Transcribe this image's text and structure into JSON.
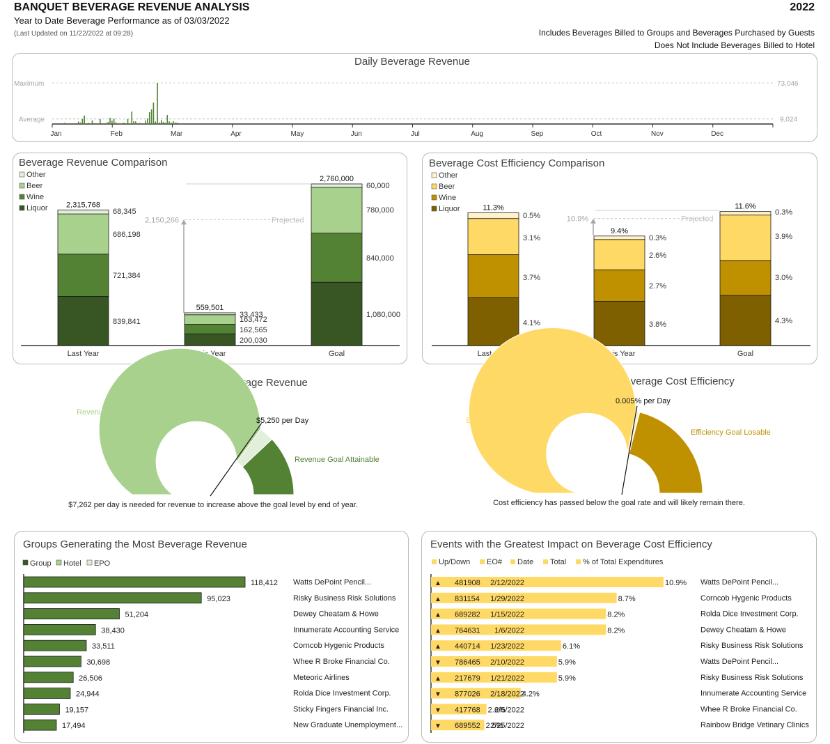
{
  "header": {
    "title": "BANQUET BEVERAGE REVENUE ANALYSIS",
    "year": "2022",
    "subtitle": "Year to Date Beverage Performance as of 03/03/2022",
    "last_updated": "(Last Updated on 11/22/2022 at 09:28)",
    "note_line1": "Includes Beverages Billed to Groups and Beverages Purchased by Guests",
    "note_line2": "Does Not Include Beverages Billed to Hotel"
  },
  "colors": {
    "liquor": "#375623",
    "wine": "#548235",
    "beer": "#a9d18e",
    "other": "#e2efda",
    "cost_liquor": "#7f6000",
    "cost_wine": "#bf9000",
    "cost_beer": "#ffd966",
    "cost_other": "#fff2cc",
    "group_bar": "#548235",
    "event_bar": "#ffd966"
  },
  "chart_data": [
    {
      "id": "daily",
      "type": "bar",
      "title": "Daily Beverage Revenue",
      "max_label": "Maximum",
      "avg_label": "Average",
      "max_value_label": "73,046",
      "avg_value_label": "9,024",
      "max_value": 73046,
      "avg_value": 9024,
      "months": [
        "Jan",
        "Feb",
        "Mar",
        "Apr",
        "May",
        "Jun",
        "Jul",
        "Aug",
        "Sep",
        "Oct",
        "Nov",
        "Dec"
      ],
      "x_unit": "day of year",
      "points": [
        {
          "x": 6,
          "y": 2100
        },
        {
          "x": 13,
          "y": 4300
        },
        {
          "x": 14,
          "y": 2600
        },
        {
          "x": 15,
          "y": 9000
        },
        {
          "x": 16,
          "y": 15000
        },
        {
          "x": 18,
          "y": 2000
        },
        {
          "x": 20,
          "y": 6500
        },
        {
          "x": 24,
          "y": 8800
        },
        {
          "x": 27,
          "y": 1800
        },
        {
          "x": 28,
          "y": 3600
        },
        {
          "x": 29,
          "y": 11000
        },
        {
          "x": 30,
          "y": 6000
        },
        {
          "x": 31,
          "y": 9400
        },
        {
          "x": 32,
          "y": 3000
        },
        {
          "x": 36,
          "y": 2400
        },
        {
          "x": 38,
          "y": 9000
        },
        {
          "x": 40,
          "y": 22000
        },
        {
          "x": 41,
          "y": 5000
        },
        {
          "x": 42,
          "y": 4600
        },
        {
          "x": 44,
          "y": 2000
        },
        {
          "x": 47,
          "y": 6100
        },
        {
          "x": 48,
          "y": 9900
        },
        {
          "x": 49,
          "y": 21000
        },
        {
          "x": 50,
          "y": 26000
        },
        {
          "x": 51,
          "y": 38000
        },
        {
          "x": 52,
          "y": 4400
        },
        {
          "x": 53,
          "y": 73046
        },
        {
          "x": 54,
          "y": 2700
        },
        {
          "x": 55,
          "y": 7000
        },
        {
          "x": 56,
          "y": 3500
        },
        {
          "x": 57,
          "y": 2300
        },
        {
          "x": 58,
          "y": 16000
        },
        {
          "x": 59,
          "y": 4600
        },
        {
          "x": 60,
          "y": 2200
        },
        {
          "x": 61,
          "y": 5000
        },
        {
          "x": 62,
          "y": 2600
        },
        {
          "x": 63,
          "y": 2500
        }
      ]
    },
    {
      "id": "revenue_comparison",
      "type": "bar",
      "title": "Beverage Revenue Comparison",
      "categories": [
        "Last Year",
        "This Year",
        "Goal"
      ],
      "series": [
        {
          "name": "Liquor",
          "values": [
            839841,
            200030,
            1080000
          ]
        },
        {
          "name": "Wine",
          "values": [
            721384,
            162565,
            840000
          ]
        },
        {
          "name": "Beer",
          "values": [
            686198,
            163472,
            780000
          ]
        },
        {
          "name": "Other",
          "values": [
            68345,
            33433,
            60000
          ]
        }
      ],
      "value_labels": [
        [
          "839,841",
          "721,384",
          "686,198",
          "68,345"
        ],
        [
          "200,030",
          "162,565",
          "163,472",
          "33,433"
        ],
        [
          "1,080,000",
          "840,000",
          "780,000",
          "60,000"
        ]
      ],
      "totals": [
        2315768,
        559501,
        2760000
      ],
      "total_labels": [
        "2,315,768",
        "559,501",
        "2,760,000"
      ],
      "legend": [
        "Other",
        "Beer",
        "Wine",
        "Liquor"
      ],
      "projected_value": 2150266,
      "projected_value_label": "2,150,266",
      "projected_label": "Projected",
      "ylim": [
        0,
        2760000
      ]
    },
    {
      "id": "cost_comparison",
      "type": "bar",
      "title": "Beverage Cost Efficiency Comparison",
      "categories": [
        "Last Year",
        "This Year",
        "Goal"
      ],
      "series": [
        {
          "name": "Liquor",
          "values": [
            4.1,
            3.8,
            4.3
          ]
        },
        {
          "name": "Wine",
          "values": [
            3.7,
            2.7,
            3.0
          ]
        },
        {
          "name": "Beer",
          "values": [
            3.1,
            2.6,
            3.9
          ]
        },
        {
          "name": "Other",
          "values": [
            0.5,
            0.3,
            0.3
          ]
        }
      ],
      "value_labels": [
        [
          "4.1%",
          "3.7%",
          "3.1%",
          "0.5%"
        ],
        [
          "3.8%",
          "2.7%",
          "2.6%",
          "0.3%"
        ],
        [
          "4.3%",
          "3.0%",
          "3.9%",
          "0.3%"
        ]
      ],
      "totals": [
        11.3,
        9.4,
        11.6
      ],
      "total_labels": [
        "11.3%",
        "9.4%",
        "11.6%"
      ],
      "legend": [
        "Other",
        "Beer",
        "Wine",
        "Liquor"
      ],
      "projected_value": 10.9,
      "projected_value_label": "10.9%",
      "projected_label": "Projected",
      "ylim": [
        0,
        11.6
      ]
    },
    {
      "id": "revenue_gauge",
      "type": "pie",
      "title": "Current Daily Gain in Beverage Revenue",
      "not_attainable_label": "Revenue Goal Not Attainable",
      "attainable_label": "Revenue Goal Attainable",
      "segments": [
        {
          "name": "Revenue Goal Not Attainable",
          "fraction": 0.7
        },
        {
          "name": "band",
          "fraction": 0.06
        },
        {
          "name": "Revenue Goal Attainable",
          "fraction": 0.24
        }
      ],
      "needle_fraction": 0.69,
      "needle_label": "$5,250 per Day",
      "caption": "$7,262 per day is needed for revenue to increase above the goal level by end of year."
    },
    {
      "id": "cost_gauge",
      "type": "pie",
      "title": "Current Daily Change in Beverage Cost Efficiency",
      "not_losable_label": "Efficiency Goal Not Losable",
      "losable_label": "Efficiency Goal Losable",
      "segments": [
        {
          "name": "Efficiency Goal Not Losable",
          "fraction": 0.565
        },
        {
          "name": "band",
          "fraction": 0.015
        },
        {
          "name": "Efficiency Goal Losable",
          "fraction": 0.42
        }
      ],
      "needle_fraction": 0.565,
      "needle_label": "0.005% per Day",
      "caption": "Cost efficiency has passed below the goal rate and will likely remain there."
    },
    {
      "id": "groups",
      "type": "bar",
      "title": "Groups Generating the Most Beverage Revenue",
      "legend": [
        "Group",
        "Hotel",
        "EPO"
      ],
      "rows": [
        {
          "name": "Watts DePoint Pencil...",
          "value": 118412,
          "label": "118,412"
        },
        {
          "name": "Risky Business Risk Solutions",
          "value": 95023,
          "label": "95,023"
        },
        {
          "name": "Dewey Cheatam & Howe",
          "value": 51204,
          "label": "51,204"
        },
        {
          "name": "Innumerate Accounting Service",
          "value": 38430,
          "label": "38,430"
        },
        {
          "name": "Corncob Hygenic Products",
          "value": 33511,
          "label": "33,511"
        },
        {
          "name": "Whee R Broke Financial Co.",
          "value": 30698,
          "label": "30,698"
        },
        {
          "name": "Meteoric Airlines",
          "value": 26506,
          "label": "26,506"
        },
        {
          "name": "Rolda Dice Investment Corp.",
          "value": 24944,
          "label": "24,944"
        },
        {
          "name": "Sticky Fingers Financial Inc.",
          "value": 19157,
          "label": "19,157"
        },
        {
          "name": "New Graduate Unemployment...",
          "value": 17494,
          "label": "17,494"
        }
      ]
    },
    {
      "id": "events",
      "type": "bar",
      "title": "Events with the Greatest Impact on Beverage Cost Efficiency",
      "legend": [
        "Up/Down",
        "EO#",
        "Date",
        "Total",
        "% of Total Expenditures"
      ],
      "rows": [
        {
          "dir": "▲",
          "eo": "481908",
          "date": "2/12/2022",
          "pct": 10.9,
          "label": "10.9%",
          "name": "Watts DePoint Pencil..."
        },
        {
          "dir": "▲",
          "eo": "831154",
          "date": "1/29/2022",
          "pct": 8.7,
          "label": "8.7%",
          "name": "Corncob Hygenic Products"
        },
        {
          "dir": "▲",
          "eo": "689282",
          "date": "1/15/2022",
          "pct": 8.2,
          "label": "8.2%",
          "name": "Rolda Dice Investment Corp."
        },
        {
          "dir": "▲",
          "eo": "764631",
          "date": "1/6/2022",
          "pct": 8.2,
          "label": "8.2%",
          "name": "Dewey Cheatam & Howe"
        },
        {
          "dir": "▲",
          "eo": "440714",
          "date": "1/23/2022",
          "pct": 6.1,
          "label": "6.1%",
          "name": "Risky Business Risk Solutions"
        },
        {
          "dir": "▼",
          "eo": "786465",
          "date": "2/10/2022",
          "pct": 5.9,
          "label": "5.9%",
          "name": "Watts DePoint Pencil..."
        },
        {
          "dir": "▲",
          "eo": "217679",
          "date": "1/21/2022",
          "pct": 5.9,
          "label": "5.9%",
          "name": "Risky Business Risk Solutions"
        },
        {
          "dir": "▼",
          "eo": "877026",
          "date": "2/18/2022",
          "pct": 4.2,
          "label": "4.2%",
          "name": "Innumerate Accounting Service"
        },
        {
          "dir": "▼",
          "eo": "417768",
          "date": "2/5/2022",
          "pct": 2.6,
          "label": "2.6%",
          "name": "Whee R Broke Financial Co."
        },
        {
          "dir": "▼",
          "eo": "689552",
          "date": "2/25/2022",
          "pct": 2.5,
          "label": "2.5%",
          "name": "Rainbow Bridge Vetinary Clinics"
        }
      ]
    }
  ]
}
